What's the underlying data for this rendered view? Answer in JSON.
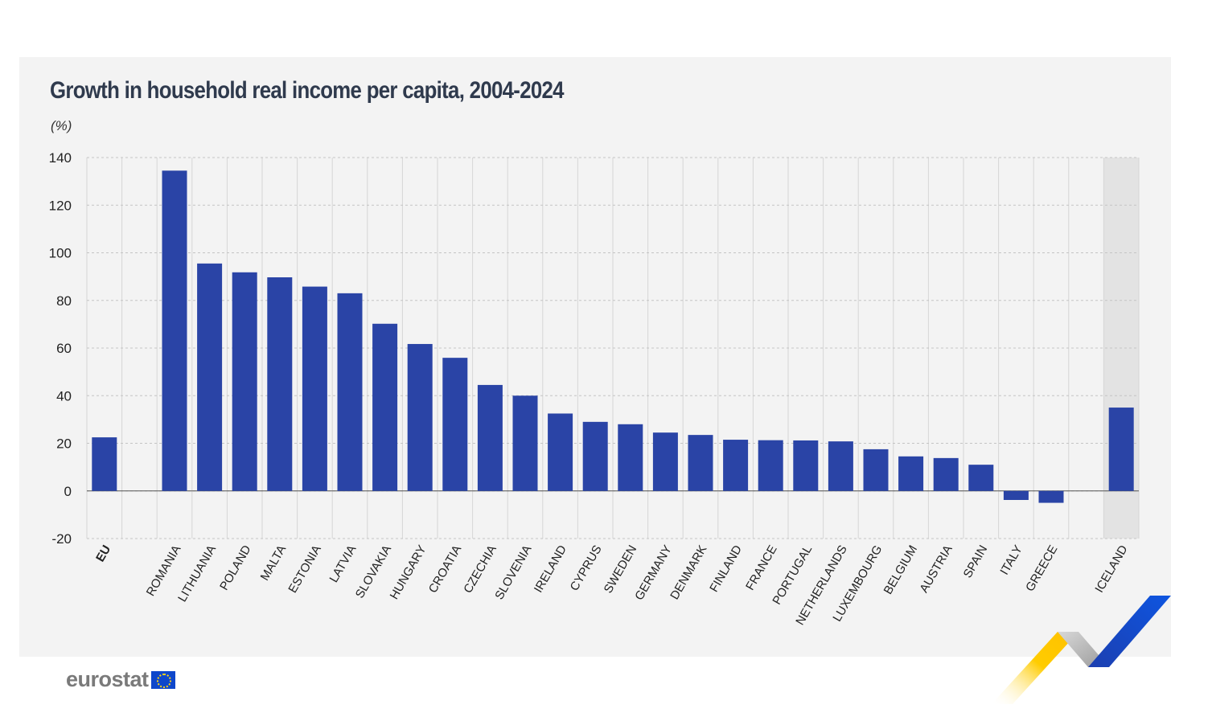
{
  "title": "Growth in household real income per capita, 2004-2024",
  "unit": "(%)",
  "brand": "eurostat",
  "colors": {
    "bar": "#2a44a6",
    "panel": "#f3f3f3",
    "highlight": "#e3e3e3",
    "grid": "#c4c4c4"
  },
  "chart_data": {
    "type": "bar",
    "ylim": [
      -20,
      140
    ],
    "yticks": [
      140,
      120,
      100,
      80,
      60,
      40,
      20,
      0,
      -20
    ],
    "grid": true,
    "categories": [
      "EU",
      "ROMANIA",
      "LITHUANIA",
      "POLAND",
      "MALTA",
      "ESTONIA",
      "LATVIA",
      "SLOVAKIA",
      "HUNGARY",
      "CROATIA",
      "CZECHIA",
      "SLOVENIA",
      "IRELAND",
      "CYPRUS",
      "SWEDEN",
      "GERMANY",
      "DENMARK",
      "FINLAND",
      "FRANCE",
      "PORTUGAL",
      "NETHERLANDS",
      "LUXEMBOURG",
      "BELGIUM",
      "AUSTRIA",
      "SPAIN",
      "ITALY",
      "GREECE",
      "ICELAND"
    ],
    "values": [
      22.5,
      134.5,
      95.5,
      91.8,
      89.7,
      85.8,
      83.0,
      70.2,
      61.7,
      55.9,
      44.5,
      40.0,
      32.5,
      29.0,
      28.0,
      24.5,
      23.5,
      21.5,
      21.3,
      21.2,
      20.8,
      17.5,
      14.5,
      13.8,
      11.0,
      -3.8,
      -5.0,
      35.0
    ]
  }
}
